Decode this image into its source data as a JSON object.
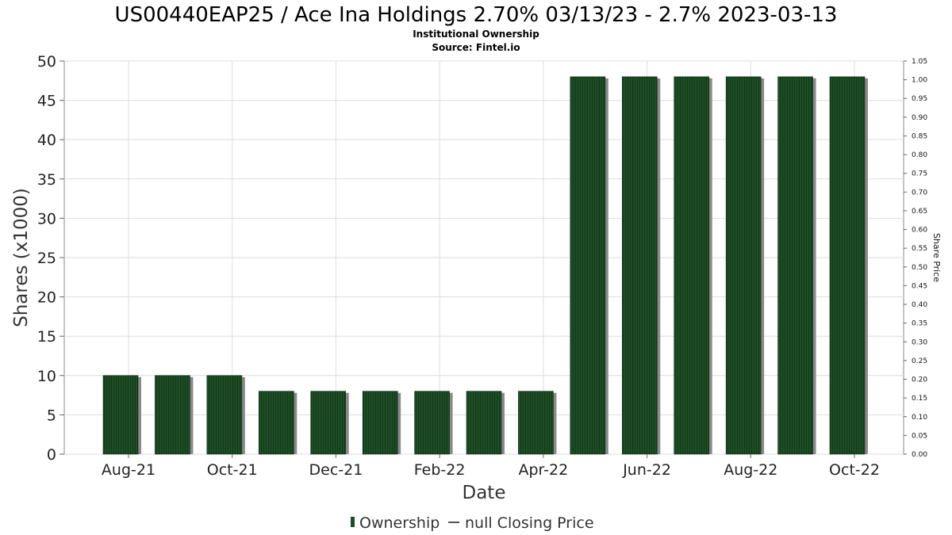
{
  "header": {
    "title": "US00440EAP25 / Ace Ina Holdings 2.70% 03/13/23 - 2.7% 2023-03-13",
    "subtitle": "Institutional Ownership",
    "source": "Source: Fintel.io"
  },
  "legend": {
    "ownership_label": "Ownership",
    "price_label": "null Closing Price"
  },
  "colors": {
    "bar": "#1e4d26",
    "bar_shadow": "#8a8a8a",
    "grid": "#dddddd",
    "frame": "#888888"
  },
  "chart_data": {
    "type": "bar",
    "title": "US00440EAP25 / Ace Ina Holdings 2.70% 03/13/23 - 2.7% 2023-03-13",
    "subtitle": "Institutional Ownership",
    "xlabel": "Date",
    "ylabel": "Shares (x1000)",
    "y2label": "Share Price",
    "ylim": [
      0,
      50
    ],
    "y2lim": [
      0,
      1.05
    ],
    "y_ticks": [
      "0",
      "5",
      "10",
      "15",
      "20",
      "25",
      "30",
      "35",
      "40",
      "45",
      "50"
    ],
    "y2_ticks": [
      "0.00",
      "0.05",
      "0.10",
      "0.15",
      "0.20",
      "0.25",
      "0.30",
      "0.35",
      "0.40",
      "0.45",
      "0.50",
      "0.55",
      "0.60",
      "0.65",
      "0.70",
      "0.75",
      "0.80",
      "0.85",
      "0.90",
      "0.95",
      "1.00",
      "1.05"
    ],
    "x_ticks": [
      "Aug-21",
      "Oct-21",
      "Dec-21",
      "Feb-22",
      "Apr-22",
      "Jun-22",
      "Aug-22",
      "Oct-22"
    ],
    "grid": true,
    "legend_position": "bottom",
    "series": [
      {
        "name": "Ownership",
        "values": [
          10,
          10,
          10,
          8,
          8,
          8,
          8,
          8,
          8,
          48,
          48,
          48,
          48,
          48,
          48
        ]
      }
    ]
  }
}
